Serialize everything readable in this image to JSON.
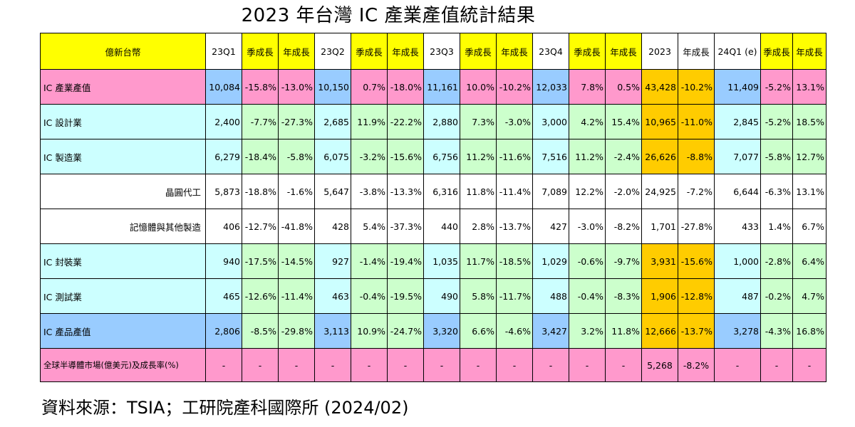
{
  "title": "2023 年台灣 IC 產業產值統計結果",
  "header": [
    "億新台幣",
    "23Q1",
    "季成長",
    "年成長",
    "23Q2",
    "季成長",
    "年成長",
    "23Q3",
    "季成長",
    "年成長",
    "23Q4",
    "季成長",
    "年成長",
    "2023",
    "年成長",
    "24Q1 (e)",
    "季成長",
    "年成長"
  ],
  "rows": [
    {
      "label": "IC 產業產值",
      "values": [
        "10,084",
        "-15.8%",
        "-13.0%",
        "10,150",
        "0.7%",
        "-18.0%",
        "11,161",
        "10.0%",
        "-10.2%",
        "12,033",
        "7.8%",
        "0.5%",
        "43,428",
        "-10.2%",
        "11,409",
        "-5.2%",
        "13.1%"
      ]
    },
    {
      "label": "IC 設計業",
      "values": [
        "2,400",
        "-7.7%",
        "-27.3%",
        "2,685",
        "11.9%",
        "-22.2%",
        "2,880",
        "7.3%",
        "-3.0%",
        "3,000",
        "4.2%",
        "15.4%",
        "10,965",
        "-11.0%",
        "2,845",
        "-5.2%",
        "18.5%"
      ]
    },
    {
      "label": "IC 製造業",
      "values": [
        "6,279",
        "-18.4%",
        "-5.8%",
        "6,075",
        "-3.2%",
        "-15.6%",
        "6,756",
        "11.2%",
        "-11.6%",
        "7,516",
        "11.2%",
        "-2.4%",
        "26,626",
        "-8.8%",
        "7,077",
        "-5.8%",
        "12.7%"
      ]
    },
    {
      "label": "晶圓代工",
      "values": [
        "5,873",
        "-18.8%",
        "-1.6%",
        "5,647",
        "-3.8%",
        "-13.3%",
        "6,316",
        "11.8%",
        "-11.4%",
        "7,089",
        "12.2%",
        "-2.0%",
        "24,925",
        "-7.2%",
        "6,644",
        "-6.3%",
        "13.1%"
      ]
    },
    {
      "label": "記憶體與其他製造",
      "values": [
        "406",
        "-12.7%",
        "-41.8%",
        "428",
        "5.4%",
        "-37.3%",
        "440",
        "2.8%",
        "-13.7%",
        "427",
        "-3.0%",
        "-8.2%",
        "1,701",
        "-27.8%",
        "433",
        "1.4%",
        "6.7%"
      ]
    },
    {
      "label": "IC 封裝業",
      "values": [
        "940",
        "-17.5%",
        "-14.5%",
        "927",
        "-1.4%",
        "-19.4%",
        "1,035",
        "11.7%",
        "-18.5%",
        "1,029",
        "-0.6%",
        "-9.7%",
        "3,931",
        "-15.6%",
        "1,000",
        "-2.8%",
        "6.4%"
      ]
    },
    {
      "label": "IC 測試業",
      "values": [
        "465",
        "-12.6%",
        "-11.4%",
        "463",
        "-0.4%",
        "-19.5%",
        "490",
        "5.8%",
        "-11.7%",
        "488",
        "-0.4%",
        "-8.3%",
        "1,906",
        "-12.8%",
        "487",
        "-0.2%",
        "4.7%"
      ]
    },
    {
      "label": "IC 產品產值",
      "values": [
        "2,806",
        "-8.5%",
        "-29.8%",
        "3,113",
        "10.9%",
        "-24.7%",
        "3,320",
        "6.6%",
        "-4.6%",
        "3,427",
        "3.2%",
        "11.8%",
        "12,666",
        "-13.7%",
        "3,278",
        "-4.3%",
        "16.8%"
      ]
    },
    {
      "label": "全球半導體市場(億美元)及成長率(%)",
      "values": [
        "-",
        "-",
        "-",
        "-",
        "-",
        "-",
        "-",
        "-",
        "-",
        "-",
        "-",
        "-",
        "5,268",
        "-8.2%",
        "-",
        "-",
        "-"
      ]
    }
  ],
  "source": "資料來源：TSIA；工研院產科國際所  (2024/02)",
  "colors": {
    "yellow": "#ffff00",
    "pink": "#ff99cc",
    "cyan": "#ccffff",
    "blue": "#99ccff",
    "green": "#ccffcc",
    "orange": "#ffcc00",
    "white": "#ffffff"
  }
}
